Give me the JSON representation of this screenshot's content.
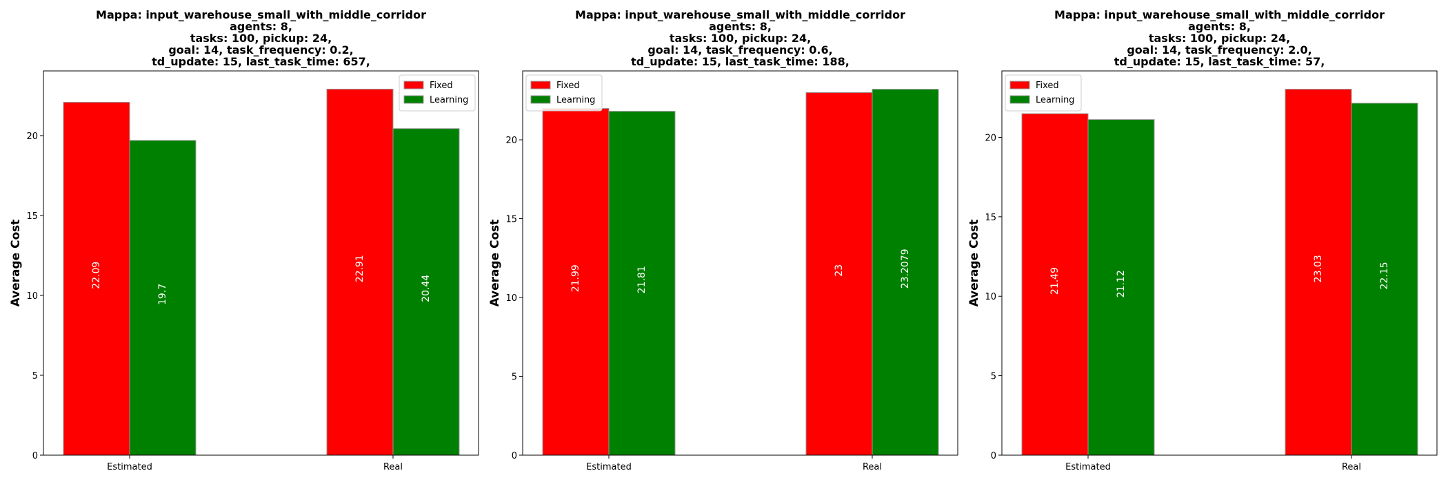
{
  "chart_data": [
    {
      "type": "bar",
      "title": [
        "Mappa: input_warehouse_small_with_middle_corridor",
        "agents: 8,",
        "tasks: 100, pickup: 24,",
        "goal: 14, task_frequency: 0.2,",
        "td_update: 15, last_task_time: 657,"
      ],
      "categories": [
        "Estimated",
        "Real"
      ],
      "series": [
        {
          "name": "Fixed",
          "values": [
            22.09,
            22.91
          ],
          "labels": [
            "22.09",
            "22.91"
          ],
          "color": "#ff0000"
        },
        {
          "name": "Learning",
          "values": [
            19.7,
            20.44
          ],
          "labels": [
            "19.7",
            "20.44"
          ],
          "color": "#008000"
        }
      ],
      "xlabel": "",
      "ylabel": "Average Cost",
      "yticks": [
        0,
        5,
        10,
        15,
        20
      ],
      "ylim": [
        0,
        24.05
      ],
      "legend": "top-right"
    },
    {
      "type": "bar",
      "title": [
        "Mappa: input_warehouse_small_with_middle_corridor",
        "agents: 8,",
        "tasks: 100, pickup: 24,",
        "goal: 14, task_frequency: 0.6,",
        "td_update: 15, last_task_time: 188,"
      ],
      "categories": [
        "Estimated",
        "Real"
      ],
      "series": [
        {
          "name": "Fixed",
          "values": [
            21.99,
            23
          ],
          "labels": [
            "21.99",
            "23"
          ],
          "color": "#ff0000"
        },
        {
          "name": "Learning",
          "values": [
            21.81,
            23.2079
          ],
          "labels": [
            "21.81",
            "23.2079"
          ],
          "color": "#008000"
        }
      ],
      "xlabel": "",
      "ylabel": "Average Cost",
      "yticks": [
        0,
        5,
        10,
        15,
        20
      ],
      "ylim": [
        0,
        24.37
      ],
      "legend": "top-left"
    },
    {
      "type": "bar",
      "title": [
        "Mappa: input_warehouse_small_with_middle_corridor",
        "agents: 8,",
        "tasks: 100, pickup: 24,",
        "goal: 14, task_frequency: 2.0,",
        "td_update: 15, last_task_time: 57,"
      ],
      "categories": [
        "Estimated",
        "Real"
      ],
      "series": [
        {
          "name": "Fixed",
          "values": [
            21.49,
            23.03
          ],
          "labels": [
            "21.49",
            "23.03"
          ],
          "color": "#ff0000"
        },
        {
          "name": "Learning",
          "values": [
            21.12,
            22.15
          ],
          "labels": [
            "21.12",
            "22.15"
          ],
          "color": "#008000"
        }
      ],
      "xlabel": "",
      "ylabel": "Average Cost",
      "yticks": [
        0,
        5,
        10,
        15,
        20
      ],
      "ylim": [
        0,
        24.18
      ],
      "legend": "top-left"
    }
  ]
}
